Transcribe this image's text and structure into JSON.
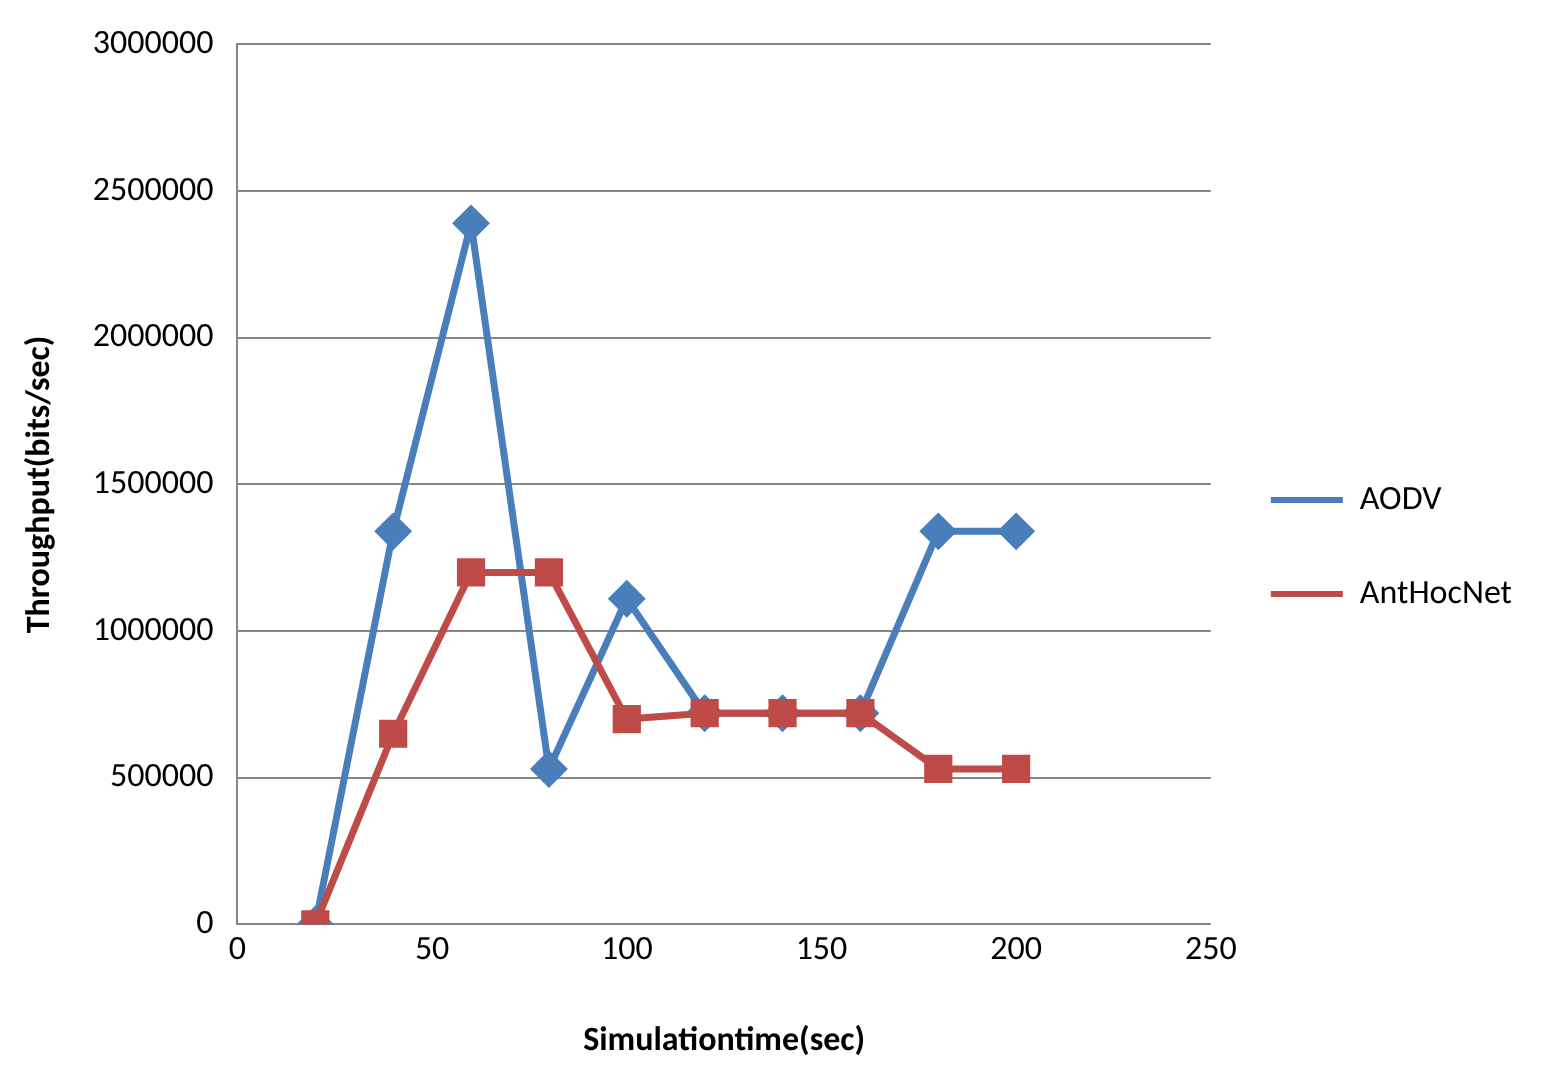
{
  "chart_data": {
    "type": "line",
    "xlabel": "Simulationtime(sec)",
    "ylabel": "Throughput(bits/sec)",
    "x": [
      20,
      40,
      60,
      80,
      100,
      120,
      140,
      160,
      180,
      200
    ],
    "series": [
      {
        "name": "AODV",
        "color": "#4a7ebb",
        "marker": "diamond",
        "values": [
          0,
          1340000,
          2390000,
          530000,
          1110000,
          720000,
          720000,
          720000,
          1340000,
          1340000
        ]
      },
      {
        "name": "AntHocNet",
        "color": "#be4b48",
        "marker": "square",
        "values": [
          0,
          650000,
          1200000,
          1200000,
          700000,
          720000,
          720000,
          720000,
          530000,
          530000
        ]
      }
    ],
    "xlim": [
      0,
      250
    ],
    "xticks": [
      0,
      50,
      100,
      150,
      200,
      250
    ],
    "ylim": [
      0,
      3000000
    ],
    "yticks": [
      0,
      500000,
      1000000,
      1500000,
      2000000,
      2500000,
      3000000
    ],
    "grid": "y",
    "legend": "right",
    "line_style": "solid"
  }
}
